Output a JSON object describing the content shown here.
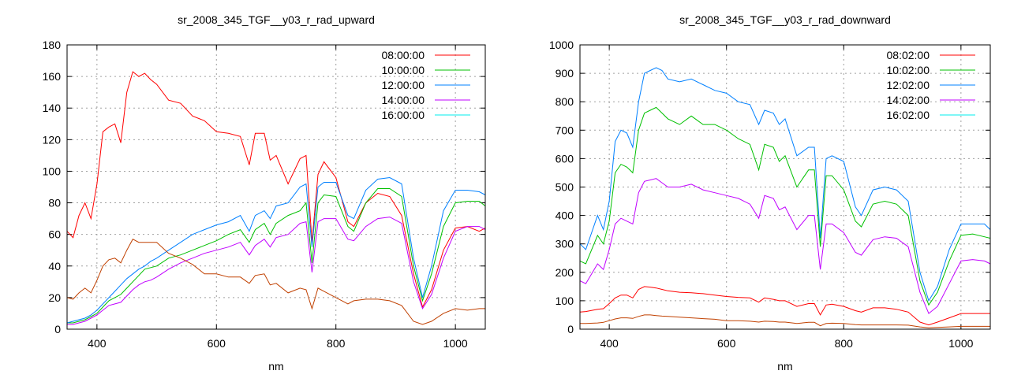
{
  "chart_data": [
    {
      "type": "line",
      "title": "sr_2008_345_TGF__y03_r_rad_upward",
      "xlabel": "nm",
      "ylabel": "",
      "xlim": [
        350,
        1050
      ],
      "ylim": [
        0,
        180
      ],
      "xticks": [
        400,
        600,
        800,
        1000
      ],
      "yticks": [
        0,
        20,
        40,
        60,
        80,
        100,
        120,
        140,
        160,
        180
      ],
      "grid": true,
      "legend": "top-right",
      "colors": {
        "08:00:00": "#ff0000",
        "10:00:00": "#00c000",
        "12:00:00": "#0080ff",
        "14:00:00": "#c000ff",
        "16:00:00": "#00eeee",
        "unlabeled": "#c04000"
      },
      "x": [
        350,
        360,
        370,
        380,
        390,
        400,
        410,
        420,
        430,
        440,
        450,
        460,
        470,
        480,
        490,
        500,
        520,
        540,
        560,
        580,
        600,
        620,
        640,
        655,
        665,
        680,
        690,
        700,
        720,
        740,
        750,
        760,
        770,
        780,
        800,
        820,
        830,
        850,
        870,
        890,
        910,
        930,
        945,
        960,
        980,
        1000,
        1020,
        1040,
        1050
      ],
      "series": [
        {
          "name": "08:00:00",
          "values": [
            62,
            58,
            72,
            80,
            70,
            92,
            125,
            128,
            130,
            118,
            150,
            163,
            160,
            162,
            158,
            155,
            145,
            143,
            135,
            132,
            125,
            124,
            122,
            104,
            124,
            124,
            107,
            110,
            92,
            108,
            110,
            55,
            98,
            106,
            96,
            68,
            65,
            80,
            86,
            84,
            72,
            35,
            14,
            25,
            50,
            64,
            65,
            62,
            64
          ]
        },
        {
          "name": "10:00:00",
          "values": [
            4,
            4,
            5,
            6,
            8,
            10,
            14,
            18,
            20,
            22,
            26,
            30,
            34,
            38,
            39,
            40,
            45,
            47,
            50,
            53,
            56,
            60,
            63,
            55,
            63,
            67,
            60,
            67,
            72,
            75,
            80,
            42,
            80,
            85,
            84,
            65,
            62,
            80,
            89,
            89,
            84,
            40,
            18,
            35,
            65,
            80,
            81,
            81,
            78
          ]
        },
        {
          "name": "12:00:00",
          "values": [
            4,
            5,
            6,
            7,
            9,
            12,
            16,
            20,
            24,
            28,
            32,
            35,
            38,
            40,
            43,
            45,
            50,
            55,
            60,
            63,
            66,
            68,
            72,
            62,
            72,
            75,
            70,
            78,
            80,
            90,
            92,
            52,
            90,
            93,
            93,
            72,
            70,
            88,
            95,
            96,
            92,
            45,
            20,
            40,
            75,
            88,
            88,
            87,
            85
          ]
        },
        {
          "name": "14:00:00",
          "values": [
            3,
            3,
            4,
            5,
            7,
            9,
            12,
            15,
            16,
            17,
            21,
            25,
            28,
            30,
            31,
            33,
            38,
            42,
            45,
            48,
            50,
            52,
            55,
            47,
            53,
            57,
            52,
            58,
            60,
            67,
            68,
            36,
            68,
            70,
            70,
            57,
            56,
            65,
            70,
            71,
            67,
            30,
            13,
            22,
            45,
            62,
            65,
            65,
            63
          ]
        },
        {
          "name": "unlabeled",
          "values": [
            20,
            19,
            23,
            26,
            23,
            31,
            40,
            44,
            45,
            42,
            50,
            57,
            55,
            55,
            55,
            55,
            48,
            45,
            41,
            35,
            35,
            33,
            33,
            29,
            34,
            35,
            28,
            29,
            23,
            26,
            25,
            13,
            26,
            24,
            20,
            16,
            18,
            19,
            19,
            18,
            15,
            5,
            3,
            5,
            10,
            13,
            12,
            13,
            13
          ]
        }
      ]
    },
    {
      "type": "line",
      "title": "sr_2008_345_TGF__y03_r_rad_downward",
      "xlabel": "nm",
      "ylabel": "",
      "xlim": [
        350,
        1050
      ],
      "ylim": [
        0,
        1000
      ],
      "xticks": [
        400,
        600,
        800,
        1000
      ],
      "yticks": [
        0,
        100,
        200,
        300,
        400,
        500,
        600,
        700,
        800,
        900,
        1000
      ],
      "grid": true,
      "legend": "top-right",
      "colors": {
        "08:02:00": "#ff0000",
        "10:02:00": "#00c000",
        "12:02:00": "#0080ff",
        "14:02:00": "#c000ff",
        "16:02:00": "#00eeee",
        "unlabeled": "#c04000"
      },
      "x": [
        350,
        360,
        380,
        390,
        400,
        410,
        420,
        430,
        440,
        450,
        460,
        470,
        480,
        490,
        500,
        520,
        540,
        560,
        580,
        600,
        620,
        640,
        655,
        665,
        680,
        690,
        700,
        720,
        740,
        750,
        760,
        770,
        780,
        800,
        820,
        830,
        850,
        870,
        890,
        910,
        930,
        945,
        960,
        980,
        1000,
        1020,
        1040,
        1050
      ],
      "series": [
        {
          "name": "12:02:00",
          "values": [
            300,
            280,
            400,
            350,
            450,
            660,
            700,
            690,
            640,
            800,
            900,
            910,
            920,
            910,
            880,
            870,
            880,
            860,
            840,
            830,
            800,
            790,
            720,
            770,
            760,
            720,
            740,
            610,
            640,
            640,
            320,
            600,
            610,
            590,
            430,
            400,
            490,
            500,
            490,
            450,
            200,
            100,
            150,
            280,
            370,
            370,
            370,
            350
          ]
        },
        {
          "name": "10:02:00",
          "values": [
            240,
            230,
            330,
            300,
            380,
            550,
            580,
            570,
            550,
            700,
            760,
            770,
            780,
            760,
            740,
            720,
            750,
            720,
            720,
            700,
            670,
            650,
            560,
            650,
            640,
            590,
            610,
            500,
            560,
            560,
            290,
            540,
            540,
            490,
            380,
            360,
            440,
            450,
            440,
            400,
            170,
            85,
            130,
            240,
            330,
            335,
            325,
            320
          ]
        },
        {
          "name": "14:02:00",
          "values": [
            170,
            160,
            230,
            210,
            280,
            370,
            390,
            380,
            370,
            480,
            520,
            525,
            530,
            515,
            500,
            500,
            510,
            490,
            480,
            470,
            460,
            440,
            390,
            470,
            460,
            420,
            430,
            350,
            400,
            400,
            210,
            370,
            370,
            340,
            270,
            260,
            315,
            325,
            320,
            290,
            130,
            55,
            80,
            160,
            240,
            245,
            240,
            230
          ]
        },
        {
          "name": "08:02:00",
          "values": [
            60,
            62,
            70,
            72,
            90,
            110,
            120,
            120,
            110,
            140,
            150,
            148,
            145,
            140,
            135,
            130,
            128,
            125,
            120,
            115,
            112,
            110,
            95,
            110,
            105,
            100,
            100,
            80,
            90,
            90,
            50,
            85,
            88,
            80,
            65,
            60,
            75,
            75,
            70,
            60,
            25,
            15,
            25,
            40,
            55,
            55,
            55,
            55
          ]
        },
        {
          "name": "unlabeled",
          "values": [
            20,
            20,
            22,
            24,
            30,
            36,
            40,
            40,
            38,
            45,
            50,
            50,
            48,
            46,
            45,
            42,
            40,
            37,
            35,
            30,
            30,
            28,
            25,
            28,
            27,
            25,
            25,
            20,
            24,
            24,
            12,
            20,
            21,
            20,
            16,
            15,
            15,
            15,
            15,
            14,
            8,
            5,
            6,
            8,
            10,
            10,
            10,
            10
          ]
        }
      ]
    }
  ],
  "legends": [
    [
      {
        "label": "08:00:00",
        "color": "#ff0000"
      },
      {
        "label": "10:00:00",
        "color": "#00c000"
      },
      {
        "label": "12:00:00",
        "color": "#0080ff"
      },
      {
        "label": "14:00:00",
        "color": "#c000ff"
      },
      {
        "label": "16:00:00",
        "color": "#00eeee"
      }
    ],
    [
      {
        "label": "08:02:00",
        "color": "#ff0000"
      },
      {
        "label": "10:02:00",
        "color": "#00c000"
      },
      {
        "label": "12:02:00",
        "color": "#0080ff"
      },
      {
        "label": "14:02:00",
        "color": "#c000ff"
      },
      {
        "label": "16:02:00",
        "color": "#00eeee"
      }
    ]
  ]
}
